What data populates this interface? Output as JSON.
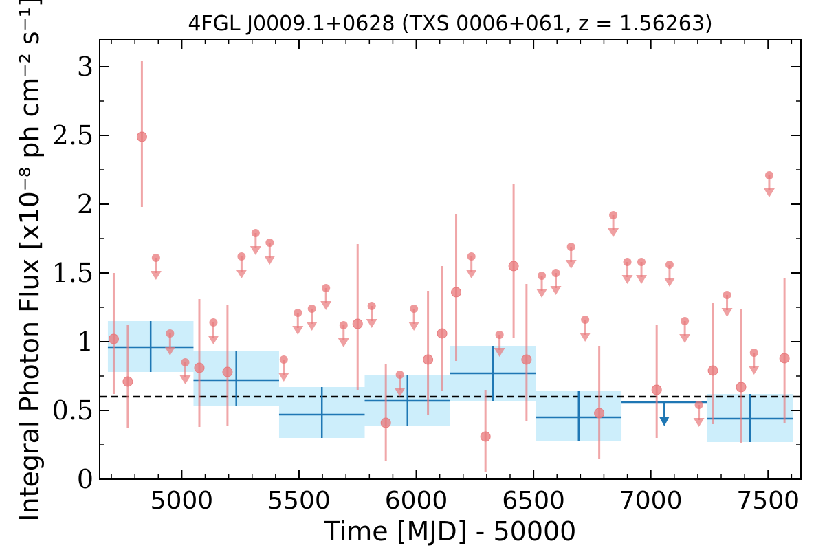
{
  "chart_data": {
    "type": "scatter",
    "title": "4FGL J0009.1+0628 (TXS 0006+061, z = 1.56263)",
    "xlabel": "Time [MJD] - 50000",
    "ylabel": "Integral Photon Flux [x10⁻⁸ ph cm⁻² s⁻¹]",
    "xlim": [
      4650,
      7640
    ],
    "ylim": [
      0,
      3.2
    ],
    "xticks": [
      5000,
      5500,
      6000,
      6500,
      7000,
      7500
    ],
    "xtick_labels": [
      "5000",
      "5500",
      "6000",
      "6500",
      "7000",
      "7500"
    ],
    "yticks": [
      0,
      0.5,
      1,
      1.5,
      2,
      2.5,
      3
    ],
    "ytick_labels": [
      "0",
      "0.5",
      "1",
      "1.5",
      "2",
      "2.5",
      "3"
    ],
    "mean_flux": 0.6,
    "colors": {
      "fine": "#e8777a",
      "coarse": "#1f77b4",
      "coarse_band": "#cdeefb",
      "mean_line": "#000000"
    },
    "series": [
      {
        "kind": "fine-bin detections",
        "points": [
          {
            "x": 4710,
            "y": 1.02,
            "ylo": 0.62,
            "yhi": 1.5
          },
          {
            "x": 4770,
            "y": 0.71,
            "ylo": 0.37,
            "yhi": 1.12
          },
          {
            "x": 4830,
            "y": 2.49,
            "ylo": 1.98,
            "yhi": 3.04
          },
          {
            "x": 5075,
            "y": 0.81,
            "ylo": 0.38,
            "yhi": 1.31
          },
          {
            "x": 5195,
            "y": 0.78,
            "ylo": 0.39,
            "yhi": 1.27
          },
          {
            "x": 5750,
            "y": 1.13,
            "ylo": 0.65,
            "yhi": 1.71
          },
          {
            "x": 5870,
            "y": 0.41,
            "ylo": 0.13,
            "yhi": 0.84
          },
          {
            "x": 6050,
            "y": 0.87,
            "ylo": 0.47,
            "yhi": 1.37
          },
          {
            "x": 6110,
            "y": 1.06,
            "ylo": 0.64,
            "yhi": 1.55
          },
          {
            "x": 6170,
            "y": 1.36,
            "ylo": 0.86,
            "yhi": 1.93
          },
          {
            "x": 6295,
            "y": 0.31,
            "ylo": 0.05,
            "yhi": 0.65
          },
          {
            "x": 6415,
            "y": 1.55,
            "ylo": 1.03,
            "yhi": 2.15
          },
          {
            "x": 6470,
            "y": 0.87,
            "ylo": 0.42,
            "yhi": 1.42
          },
          {
            "x": 6780,
            "y": 0.48,
            "ylo": 0.15,
            "yhi": 0.97
          },
          {
            "x": 7025,
            "y": 0.65,
            "ylo": 0.3,
            "yhi": 1.12
          },
          {
            "x": 7265,
            "y": 0.79,
            "ylo": 0.4,
            "yhi": 1.28
          },
          {
            "x": 7385,
            "y": 0.67,
            "ylo": 0.26,
            "yhi": 1.24
          },
          {
            "x": 7570,
            "y": 0.88,
            "ylo": 0.41,
            "yhi": 1.46
          }
        ]
      },
      {
        "kind": "fine-bin upper limits",
        "points": [
          {
            "x": 4890,
            "y": 1.61
          },
          {
            "x": 4950,
            "y": 1.06
          },
          {
            "x": 5015,
            "y": 0.85
          },
          {
            "x": 5135,
            "y": 1.14
          },
          {
            "x": 5255,
            "y": 1.62
          },
          {
            "x": 5315,
            "y": 1.79
          },
          {
            "x": 5375,
            "y": 1.72
          },
          {
            "x": 5435,
            "y": 0.87
          },
          {
            "x": 5495,
            "y": 1.21
          },
          {
            "x": 5555,
            "y": 1.24
          },
          {
            "x": 5615,
            "y": 1.39
          },
          {
            "x": 5690,
            "y": 1.12
          },
          {
            "x": 5810,
            "y": 1.26
          },
          {
            "x": 5930,
            "y": 0.76
          },
          {
            "x": 5990,
            "y": 1.24
          },
          {
            "x": 6235,
            "y": 1.62
          },
          {
            "x": 6355,
            "y": 1.05
          },
          {
            "x": 6535,
            "y": 1.48
          },
          {
            "x": 6595,
            "y": 1.5
          },
          {
            "x": 6660,
            "y": 1.69
          },
          {
            "x": 6720,
            "y": 1.16
          },
          {
            "x": 6840,
            "y": 1.92
          },
          {
            "x": 6900,
            "y": 1.58
          },
          {
            "x": 6960,
            "y": 1.58
          },
          {
            "x": 7080,
            "y": 1.56
          },
          {
            "x": 7145,
            "y": 1.15
          },
          {
            "x": 7205,
            "y": 0.54
          },
          {
            "x": 7325,
            "y": 1.34
          },
          {
            "x": 7440,
            "y": 0.92
          },
          {
            "x": 7505,
            "y": 2.21
          }
        ]
      },
      {
        "kind": "coarse-bin detections",
        "bins": [
          {
            "x0": 4685,
            "x1": 5050,
            "y": 0.96,
            "ylo": 0.78,
            "yhi": 1.15
          },
          {
            "x0": 5050,
            "x1": 5415,
            "y": 0.72,
            "ylo": 0.53,
            "yhi": 0.93
          },
          {
            "x0": 5415,
            "x1": 5780,
            "y": 0.47,
            "ylo": 0.3,
            "yhi": 0.67
          },
          {
            "x0": 5780,
            "x1": 6145,
            "y": 0.57,
            "ylo": 0.39,
            "yhi": 0.76
          },
          {
            "x0": 6145,
            "x1": 6510,
            "y": 0.77,
            "ylo": 0.57,
            "yhi": 0.97
          },
          {
            "x0": 6510,
            "x1": 6875,
            "y": 0.45,
            "ylo": 0.28,
            "yhi": 0.64
          },
          {
            "x0": 7240,
            "x1": 7605,
            "y": 0.44,
            "ylo": 0.27,
            "yhi": 0.62
          }
        ]
      },
      {
        "kind": "coarse-bin upper limits",
        "bins": [
          {
            "x0": 6875,
            "x1": 7240,
            "y": 0.56
          }
        ]
      }
    ]
  }
}
